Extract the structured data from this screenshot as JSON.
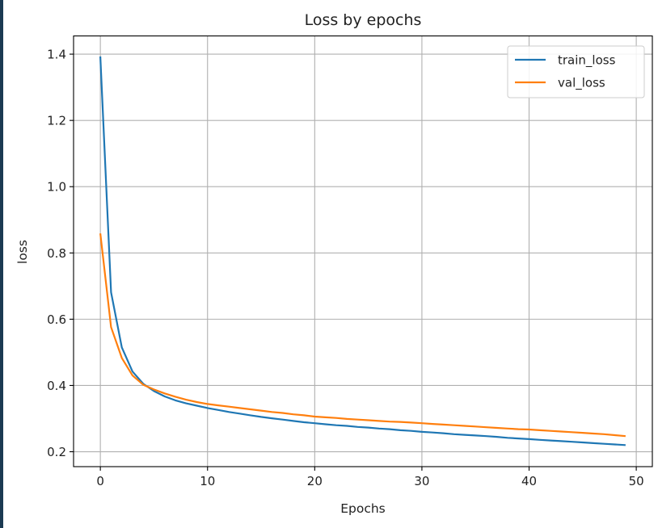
{
  "chart_data": {
    "type": "line",
    "title": "Loss by epochs",
    "xlabel": "Epochs",
    "ylabel": "loss",
    "xlim": [
      -2.5,
      51.5
    ],
    "ylim": [
      0.155,
      1.455
    ],
    "xticks": [
      0,
      10,
      20,
      30,
      40,
      50
    ],
    "xtick_labels": [
      "0",
      "10",
      "20",
      "30",
      "40",
      "50"
    ],
    "yticks": [
      0.2,
      0.4,
      0.6,
      0.8,
      1.0,
      1.2,
      1.4
    ],
    "ytick_labels": [
      "0.2",
      "0.4",
      "0.6",
      "0.8",
      "1.0",
      "1.2",
      "1.4"
    ],
    "grid": true,
    "legend_position": "top-right",
    "series": [
      {
        "name": "train_loss",
        "color": "#1f77b4",
        "values": [
          1.393,
          0.681,
          0.515,
          0.442,
          0.405,
          0.383,
          0.367,
          0.355,
          0.346,
          0.339,
          0.332,
          0.326,
          0.32,
          0.315,
          0.31,
          0.305,
          0.301,
          0.297,
          0.293,
          0.289,
          0.286,
          0.283,
          0.28,
          0.278,
          0.275,
          0.273,
          0.27,
          0.268,
          0.265,
          0.263,
          0.26,
          0.258,
          0.256,
          0.253,
          0.251,
          0.249,
          0.247,
          0.245,
          0.242,
          0.24,
          0.238,
          0.236,
          0.234,
          0.232,
          0.23,
          0.228,
          0.226,
          0.224,
          0.222,
          0.22
        ]
      },
      {
        "name": "val_loss",
        "color": "#ff7f0e",
        "values": [
          0.859,
          0.576,
          0.483,
          0.43,
          0.402,
          0.388,
          0.376,
          0.366,
          0.357,
          0.35,
          0.344,
          0.34,
          0.336,
          0.332,
          0.328,
          0.324,
          0.32,
          0.317,
          0.313,
          0.31,
          0.306,
          0.304,
          0.302,
          0.299,
          0.297,
          0.295,
          0.293,
          0.291,
          0.29,
          0.288,
          0.286,
          0.284,
          0.282,
          0.28,
          0.278,
          0.276,
          0.274,
          0.272,
          0.27,
          0.268,
          0.267,
          0.265,
          0.263,
          0.261,
          0.259,
          0.257,
          0.255,
          0.253,
          0.25,
          0.247
        ]
      }
    ]
  }
}
